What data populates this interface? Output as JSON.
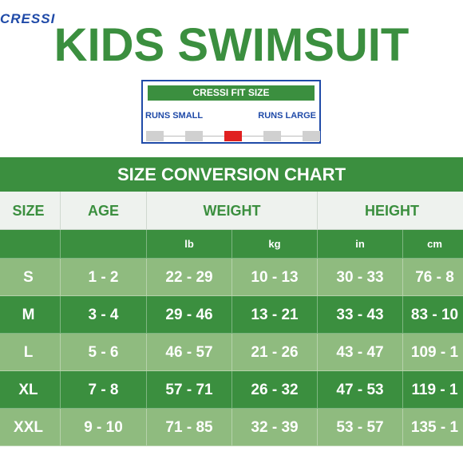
{
  "brand": "CRESSI",
  "title": "KIDS SWIMSUIT",
  "fit": {
    "header": "CRESSI FIT SIZE",
    "runs_small": "RUNS SMALL",
    "runs_large": "RUNS LARGE",
    "segments": 5,
    "active_segment": 3
  },
  "chart_title": "SIZE CONVERSION CHART",
  "columns": {
    "size": "SIZE",
    "age": "AGE",
    "weight": "WEIGHT",
    "height": "HEIGHT"
  },
  "units": [
    "lb",
    "kg",
    "in",
    "cm"
  ],
  "rows": [
    {
      "size": "S",
      "age": "1 - 2",
      "lb": "22 - 29",
      "kg": "10 - 13",
      "in": "30 - 33",
      "cm": "76 - 8"
    },
    {
      "size": "M",
      "age": "3 - 4",
      "lb": "29 - 46",
      "kg": "13 - 21",
      "in": "33 - 43",
      "cm": "83 - 10"
    },
    {
      "size": "L",
      "age": "5 - 6",
      "lb": "46 - 57",
      "kg": "21 - 26",
      "in": "43 - 47",
      "cm": "109 - 1"
    },
    {
      "size": "XL",
      "age": "7 - 8",
      "lb": "57 - 71",
      "kg": "26 - 32",
      "in": "47 - 53",
      "cm": "119 - 1"
    },
    {
      "size": "XXL",
      "age": "9 - 10",
      "lb": "71 - 85",
      "kg": "32 - 39",
      "in": "53 - 57",
      "cm": "135 - 1"
    }
  ],
  "colors": {
    "green": "#3b8f3f",
    "light_green": "#8fbb7f",
    "blue": "#1f4aa8",
    "red": "#e02020"
  }
}
